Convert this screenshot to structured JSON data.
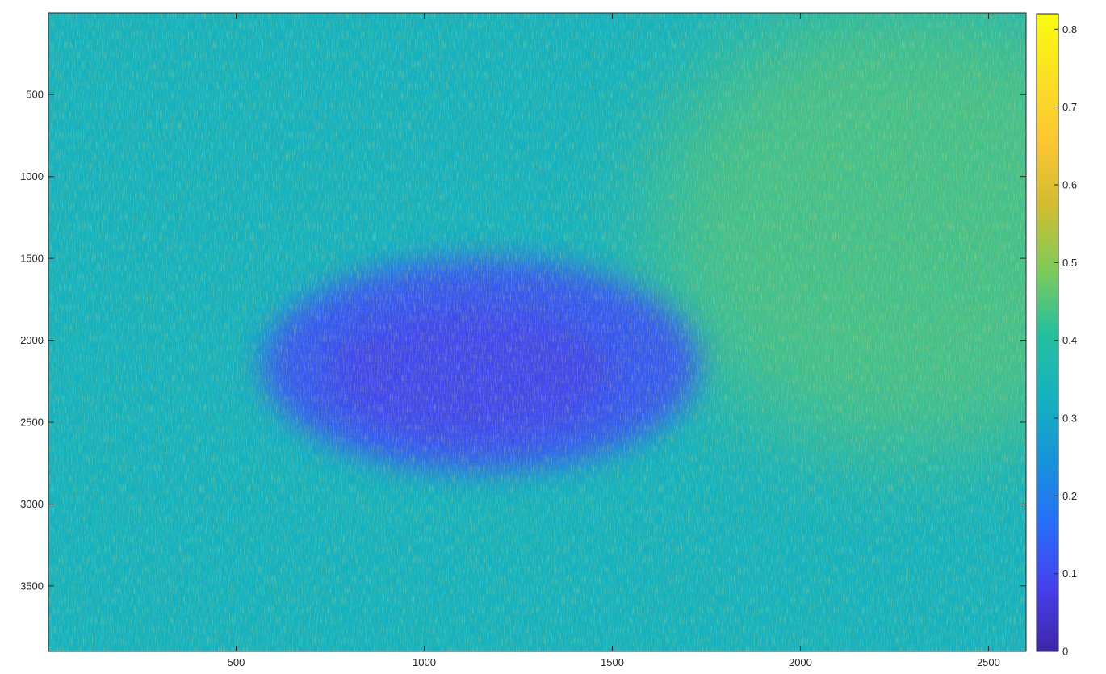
{
  "chart_data": {
    "type": "heatmap",
    "title": "",
    "xlabel": "",
    "ylabel": "",
    "xlim": [
      1,
      2600
    ],
    "ylim": [
      1,
      3900
    ],
    "y_reversed": true,
    "x_ticks": [
      500,
      1000,
      1500,
      2000,
      2500
    ],
    "x_tick_labels": [
      "500",
      "1000",
      "1500",
      "2000",
      "2500"
    ],
    "y_ticks": [
      500,
      1000,
      1500,
      2000,
      2500,
      3000,
      3500
    ],
    "y_tick_labels": [
      "500",
      "1000",
      "1500",
      "2000",
      "2500",
      "3000",
      "3500"
    ],
    "colormap": "parula",
    "colorbar": {
      "range": [
        0,
        0.82
      ],
      "ticks": [
        0,
        0.1,
        0.2,
        0.3,
        0.4,
        0.5,
        0.6,
        0.7,
        0.8
      ],
      "tick_labels": [
        "0",
        "0.1",
        "0.2",
        "0.3",
        "0.4",
        "0.5",
        "0.6",
        "0.7",
        "0.8"
      ],
      "location": "right"
    },
    "field": {
      "background_level": 0.33,
      "upper_right_level": 0.45,
      "ellipse_region": {
        "center_x": 1150,
        "center_y": 2150,
        "radius_x": 580,
        "radius_y": 650,
        "level": 0.12
      }
    },
    "grid": false,
    "box": true
  }
}
